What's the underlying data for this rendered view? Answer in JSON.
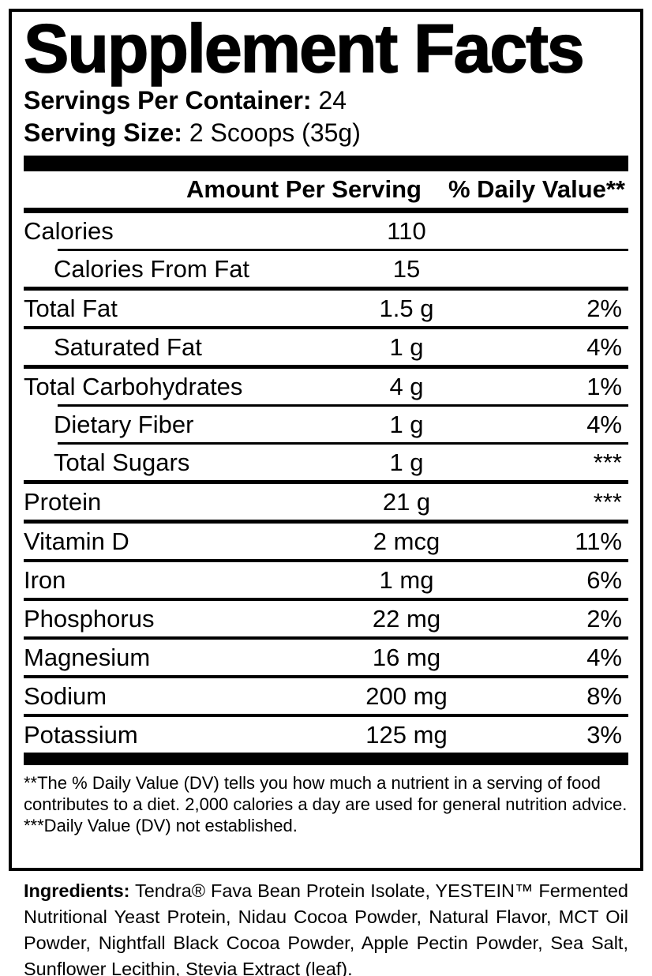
{
  "panel": {
    "title": "Supplement Facts",
    "servings_per_container": {
      "label": "Servings Per Container:",
      "value": "24"
    },
    "serving_size": {
      "label": "Serving Size:",
      "value": "2 Scoops (35g)"
    },
    "columns": {
      "amount_header": "Amount Per Serving",
      "daily_value_header": "% Daily Value**"
    },
    "rows": [
      {
        "name": "Calories",
        "amount": "110",
        "dv": "",
        "indent": false,
        "rule_after": "indent"
      },
      {
        "name": "Calories From Fat",
        "amount": "15",
        "dv": "",
        "indent": true,
        "rule_after": "thick"
      },
      {
        "name": "Total Fat",
        "amount": "1.5 g",
        "dv": "2%",
        "indent": false,
        "rule_after": "normal"
      },
      {
        "name": "Saturated Fat",
        "amount": "1 g",
        "dv": "4%",
        "indent": true,
        "rule_after": "thick"
      },
      {
        "name": "Total Carbohydrates",
        "amount": "4 g",
        "dv": "1%",
        "indent": false,
        "rule_after": "indent"
      },
      {
        "name": "Dietary Fiber",
        "amount": "1 g",
        "dv": "4%",
        "indent": true,
        "rule_after": "indent"
      },
      {
        "name": "Total Sugars",
        "amount": "1 g",
        "dv": "***",
        "indent": true,
        "rule_after": "thick"
      },
      {
        "name": "Protein",
        "amount": "21 g",
        "dv": "***",
        "indent": false,
        "rule_after": "thick"
      },
      {
        "name": "Vitamin D",
        "amount": "2 mcg",
        "dv": "11%",
        "indent": false,
        "rule_after": "normal"
      },
      {
        "name": "Iron",
        "amount": "1 mg",
        "dv": "6%",
        "indent": false,
        "rule_after": "normal"
      },
      {
        "name": "Phosphorus",
        "amount": "22 mg",
        "dv": "2%",
        "indent": false,
        "rule_after": "normal"
      },
      {
        "name": "Magnesium",
        "amount": "16 mg",
        "dv": "4%",
        "indent": false,
        "rule_after": "normal"
      },
      {
        "name": "Sodium",
        "amount": "200 mg",
        "dv": "8%",
        "indent": false,
        "rule_after": "normal"
      },
      {
        "name": "Potassium",
        "amount": "125 mg",
        "dv": "3%",
        "indent": false,
        "rule_after": "none"
      }
    ],
    "footnotes": [
      "**The % Daily Value (DV) tells you how much a nutrient in a serving of food contributes to a diet. 2,000 calories a day are used for general nutrition advice.",
      "***Daily Value (DV) not established."
    ],
    "colors": {
      "ink": "#000000",
      "paper": "#ffffff"
    }
  },
  "ingredients": {
    "label": "Ingredients:",
    "text": "Tendra® Fava Bean Protein Isolate, YESTEIN™ Fermented Nutritional Yeast Protein, Nidau Cocoa Powder, Natural Flavor, MCT Oil Powder, Nightfall Black Cocoa Powder, Apple Pectin Powder, Sea Salt, Sunflower Lecithin, Stevia Extract (leaf)."
  }
}
